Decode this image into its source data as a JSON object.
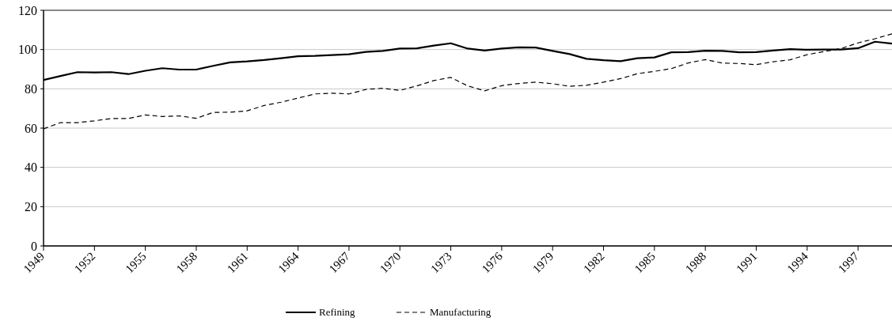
{
  "chart_data": {
    "type": "line",
    "x": [
      1949,
      1950,
      1951,
      1952,
      1953,
      1954,
      1955,
      1956,
      1957,
      1958,
      1959,
      1960,
      1961,
      1962,
      1963,
      1964,
      1965,
      1966,
      1967,
      1968,
      1969,
      1970,
      1971,
      1972,
      1973,
      1974,
      1975,
      1976,
      1977,
      1978,
      1979,
      1980,
      1981,
      1982,
      1983,
      1984,
      1985,
      1986,
      1987,
      1988,
      1989,
      1990,
      1991,
      1992,
      1993,
      1994,
      1995,
      1996,
      1997,
      1998,
      1999
    ],
    "series": [
      {
        "name": "Refining",
        "color": "#000000",
        "line_style": "solid",
        "values": [
          84.5,
          86.5,
          88.5,
          88.3,
          88.5,
          87.5,
          89.2,
          90.5,
          89.8,
          89.8,
          91.7,
          93.5,
          94,
          94.7,
          95.6,
          96.6,
          96.8,
          97.2,
          97.6,
          98.8,
          99.3,
          100.5,
          100.6,
          102,
          103.2,
          100.5,
          99.5,
          100.5,
          101.1,
          101,
          99.3,
          97.7,
          95.3,
          94.6,
          94.1,
          95.6,
          96,
          98.6,
          98.7,
          99.4,
          99.3,
          98.6,
          98.7,
          99.5,
          100.2,
          99.9,
          100,
          100,
          100.7,
          104,
          103
        ]
      },
      {
        "name": "Manufacturing",
        "color": "#000000",
        "line_style": "dashed",
        "values": [
          59.6,
          62.8,
          62.8,
          63.7,
          64.9,
          64.9,
          66.7,
          65.9,
          66.2,
          65,
          68,
          68.1,
          68.8,
          71.5,
          73.2,
          75.3,
          77.4,
          77.8,
          77.4,
          79.7,
          80.3,
          79.2,
          81.5,
          84.2,
          85.8,
          81.5,
          79,
          81.6,
          82.7,
          83.4,
          82.6,
          81.3,
          81.8,
          83.4,
          85.2,
          87.7,
          88.9,
          90.3,
          93.2,
          94.9,
          93.1,
          92.9,
          92.3,
          93.8,
          94.8,
          97.4,
          99,
          100.5,
          103.4,
          105.5,
          108
        ]
      }
    ],
    "xlim": [
      1949,
      1999
    ],
    "xticks": [
      1949,
      1952,
      1955,
      1958,
      1961,
      1964,
      1967,
      1970,
      1973,
      1976,
      1979,
      1982,
      1985,
      1988,
      1991,
      1994,
      1997
    ],
    "ylim": [
      0,
      120
    ],
    "yticks": [
      0,
      20,
      40,
      60,
      80,
      100,
      120
    ],
    "grid": "y",
    "legend": "bottom",
    "marker": "none"
  }
}
